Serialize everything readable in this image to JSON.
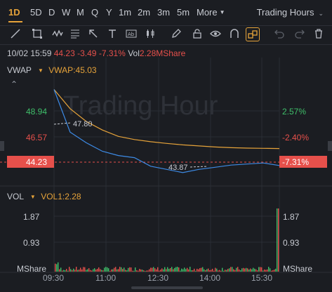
{
  "periods": [
    "1D",
    "5D",
    "D",
    "W",
    "M",
    "Q",
    "Y",
    "1m",
    "2m",
    "3m",
    "5m"
  ],
  "more_label": "More",
  "mode_label": "Trading Hours",
  "quote": {
    "datetime": "10/02 15:59",
    "price": "44.23",
    "change": "-3.49",
    "change_pct": "-7.31%",
    "vol_label": "Vol",
    "vol_value": "2.28MShare"
  },
  "indicator": {
    "name": "VWAP",
    "value_label": "VWAP:45.03"
  },
  "watermark": "Trading Hour",
  "price_axis_left": [
    "48.94",
    "46.57",
    "44.23"
  ],
  "price_axis_right": [
    "2.57%",
    "-2.40%",
    "-7.31%"
  ],
  "annotations": {
    "high": "47.80",
    "low": "43.87"
  },
  "volume": {
    "name": "VOL",
    "value_label": "VOL1:2.28",
    "left_ticks": [
      "1.87",
      "0.93",
      "MShare"
    ],
    "right_ticks": [
      "1.87",
      "0.93",
      "MShare"
    ]
  },
  "time_axis": [
    "09:30",
    "11:00",
    "12:30",
    "14:00",
    "15:30"
  ],
  "colors": {
    "accent": "#e6a33a",
    "down": "#e6504b",
    "up": "#3fbf6a",
    "price_line": "#3d8be6",
    "vwap_line": "#e6a33a"
  },
  "chart_data": {
    "type": "line",
    "series": [
      {
        "name": "VWAP",
        "values": [
          47.8,
          46.9,
          46.3,
          45.9,
          45.6,
          45.45,
          45.35,
          45.27,
          45.2,
          45.15,
          45.1,
          45.07,
          45.05,
          45.04,
          45.03
        ]
      }
    ],
    "x": [
      "09:30",
      "10:00",
      "10:30",
      "11:00",
      "11:30",
      "12:00",
      "12:30",
      "13:00",
      "13:30",
      "14:00",
      "14:30",
      "15:00",
      "15:30",
      "15:45",
      "16:00"
    ],
    "price_values": [
      47.8,
      45.8,
      45.3,
      44.9,
      44.7,
      44.6,
      44.2,
      44.05,
      43.9,
      44.05,
      44.15,
      44.25,
      44.3,
      44.35,
      44.23
    ],
    "ylim": [
      43.5,
      49.3
    ]
  }
}
